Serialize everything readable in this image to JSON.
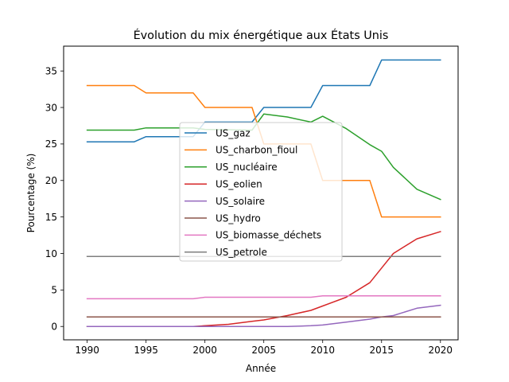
{
  "chart_data": {
    "type": "line",
    "title": "Évolution du mix énergétique aux États Unis",
    "xlabel": "Année",
    "ylabel": "Pourcentage (%)",
    "xlim": [
      1988,
      2021.5
    ],
    "ylim": [
      -1.83,
      38.4
    ],
    "xticks": [
      1990,
      1995,
      2000,
      2005,
      2010,
      2015,
      2020
    ],
    "yticks": [
      0,
      5,
      10,
      15,
      20,
      25,
      30,
      35
    ],
    "grid": false,
    "legend_position": "center",
    "series": [
      {
        "name": "US_gaz",
        "color": "#1f77b4",
        "x": [
          1990,
          1994,
          1995,
          1999,
          2000,
          2004,
          2005,
          2009,
          2010,
          2014,
          2015,
          2020
        ],
        "y": [
          25.3,
          25.3,
          26.0,
          26.0,
          28.0,
          28.0,
          30.0,
          30.0,
          33.0,
          33.0,
          36.5,
          36.5
        ]
      },
      {
        "name": "US_charbon_fioul",
        "color": "#ff7f0e",
        "x": [
          1990,
          1994,
          1995,
          1999,
          2000,
          2004,
          2005,
          2009,
          2010,
          2014,
          2015,
          2020
        ],
        "y": [
          33.0,
          33.0,
          32.0,
          32.0,
          30.0,
          30.0,
          25.0,
          25.0,
          20.0,
          20.0,
          15.0,
          15.0
        ]
      },
      {
        "name": "US_nucléaire",
        "color": "#2ca02c",
        "x": [
          1990,
          1994,
          1995,
          1999,
          2000,
          2004,
          2005,
          2007,
          2009,
          2010,
          2012,
          2014,
          2015,
          2016,
          2018,
          2020
        ],
        "y": [
          26.9,
          26.9,
          27.2,
          27.2,
          27.0,
          26.9,
          29.1,
          28.7,
          28.0,
          28.8,
          27.1,
          24.9,
          24.0,
          21.8,
          18.8,
          17.4
        ]
      },
      {
        "name": "US_eolien",
        "color": "#d62728",
        "x": [
          1990,
          1999,
          2000,
          2002,
          2004,
          2005,
          2007,
          2009,
          2010,
          2012,
          2014,
          2015,
          2016,
          2018,
          2020
        ],
        "y": [
          0.0,
          0.0,
          0.1,
          0.3,
          0.7,
          0.9,
          1.5,
          2.2,
          2.8,
          4.0,
          6.0,
          8.0,
          10.0,
          12.0,
          13.0
        ]
      },
      {
        "name": "US_solaire",
        "color": "#9467bd",
        "x": [
          1990,
          2007,
          2009,
          2010,
          2012,
          2014,
          2015,
          2016,
          2018,
          2020
        ],
        "y": [
          0.0,
          0.0,
          0.1,
          0.2,
          0.6,
          1.0,
          1.3,
          1.5,
          2.5,
          2.9
        ]
      },
      {
        "name": "US_hydro",
        "color": "#8c564b",
        "x": [
          1990,
          2020
        ],
        "y": [
          1.3,
          1.3
        ]
      },
      {
        "name": "US_biomasse_déchets",
        "color": "#e377c2",
        "x": [
          1990,
          1999,
          2000,
          2009,
          2010,
          2020
        ],
        "y": [
          3.8,
          3.8,
          4.0,
          4.0,
          4.2,
          4.2
        ]
      },
      {
        "name": "US_petrole",
        "color": "#7f7f7f",
        "x": [
          1990,
          2020
        ],
        "y": [
          9.6,
          9.6
        ]
      }
    ]
  }
}
